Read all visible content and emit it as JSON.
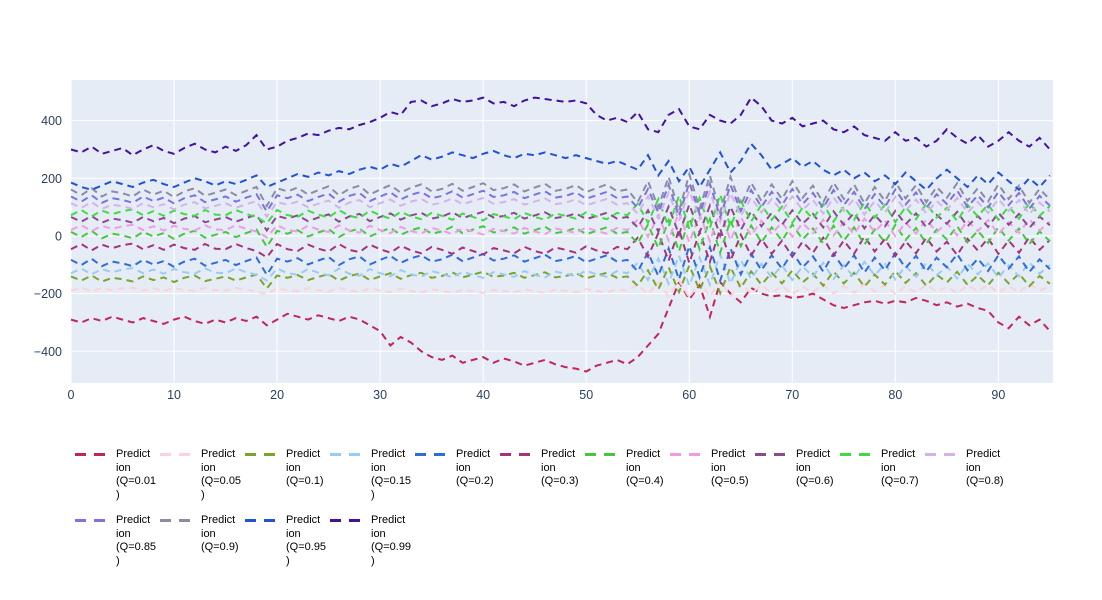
{
  "figure": {
    "title": "",
    "background": "#ffffff"
  },
  "axes": {
    "plot_bg": "#e5ecf6",
    "grid_color": "#ffffff",
    "tick_color": "#2a3f5f",
    "x_ticks": [
      0,
      10,
      20,
      30,
      40,
      50,
      60,
      70,
      80,
      90
    ],
    "y_ticks": [
      -400,
      -200,
      0,
      200,
      400
    ],
    "x_range": [
      0,
      95.3
    ],
    "y_range": [
      -510,
      541
    ]
  },
  "chart_data": {
    "type": "line",
    "title": "",
    "xlabel": "",
    "ylabel": "",
    "line_style": "dashed",
    "grid": true,
    "legend_position": "bottom",
    "x_start": 0,
    "x_step": 1,
    "n_points": 96,
    "xlim": [
      0,
      95.3
    ],
    "ylim": [
      -510,
      541
    ],
    "patterns": {
      "A": [
        12,
        -6,
        16,
        -10,
        6,
        0,
        -10,
        12,
        -4,
        8,
        -12,
        6,
        16,
        -8,
        2,
        12,
        -6,
        8,
        20,
        -40,
        16,
        6,
        18,
        -4,
        10,
        22,
        -6,
        14,
        24,
        -4,
        12,
        26,
        2,
        18,
        28,
        6,
        14,
        30,
        8,
        20,
        32,
        10,
        16,
        28,
        6,
        18,
        30,
        8,
        14,
        26,
        4,
        16,
        28,
        6,
        12,
        -28,
        38,
        -44,
        52,
        -56,
        60,
        -48,
        56,
        -60,
        52,
        -38,
        34,
        -24,
        28,
        -18,
        38,
        -14,
        24,
        -28,
        34,
        -18,
        28,
        -32,
        20,
        -24,
        36,
        -16,
        26,
        -28,
        20,
        -14,
        32,
        -24,
        16,
        -26,
        28,
        -18,
        24,
        -30,
        14,
        -20
      ],
      "B": [
        -8,
        10,
        -12,
        8,
        -4,
        6,
        12,
        -8,
        6,
        -10,
        8,
        -4,
        -10,
        10,
        -6,
        -8,
        10,
        -4,
        -14,
        -36,
        10,
        -8,
        -14,
        8,
        -6,
        -16,
        10,
        -10,
        -18,
        8,
        -8,
        -20,
        4,
        -12,
        -22,
        0,
        -10,
        -24,
        -2,
        -14,
        -26,
        -4,
        -12,
        -22,
        0,
        -14,
        -24,
        -2,
        -10,
        -20,
        2,
        -12,
        -22,
        0,
        -8,
        32,
        -34,
        48,
        -48,
        60,
        -56,
        52,
        -52,
        64,
        -48,
        42,
        -30,
        28,
        -24,
        22,
        -34,
        18,
        -20,
        32,
        -30,
        22,
        -24,
        36,
        -16,
        28,
        -32,
        20,
        -22,
        32,
        -16,
        18,
        -28,
        28,
        -12,
        30,
        -24,
        22,
        -20,
        34,
        -10,
        24
      ]
    },
    "series": [
      {
        "id": "q0-01",
        "name": "Prediction (Q=0.01)",
        "legend_lines": [
          "Predict",
          "ion",
          "(Q=0.01",
          ")"
        ],
        "color": "#c22558",
        "values": [
          -290,
          -300,
          -285,
          -295,
          -280,
          -290,
          -300,
          -285,
          -295,
          -305,
          -290,
          -280,
          -295,
          -305,
          -290,
          -300,
          -285,
          -295,
          -280,
          -310,
          -290,
          -270,
          -280,
          -290,
          -275,
          -285,
          -295,
          -280,
          -290,
          -310,
          -330,
          -380,
          -350,
          -370,
          -400,
          -420,
          -430,
          -415,
          -440,
          -430,
          -420,
          -440,
          -425,
          -435,
          -450,
          -440,
          -430,
          -445,
          -455,
          -460,
          -470,
          -450,
          -440,
          -430,
          -445,
          -420,
          -380,
          -340,
          -250,
          -160,
          -220,
          -170,
          -280,
          -160,
          -200,
          -230,
          -180,
          -200,
          -210,
          -205,
          -215,
          -210,
          -200,
          -220,
          -240,
          -250,
          -240,
          -230,
          -225,
          -235,
          -225,
          -230,
          -215,
          -225,
          -240,
          -230,
          -245,
          -235,
          -250,
          -260,
          -300,
          -320,
          -280,
          -310,
          -290,
          -330
        ]
      },
      {
        "id": "q0-05",
        "name": "Prediction (Q=0.05)",
        "legend_lines": [
          "Predict",
          "ion",
          "(Q=0.05",
          ")"
        ],
        "color": "#fbd2d8",
        "base": -185,
        "amp": 0.5,
        "pattern": "B"
      },
      {
        "id": "q0-1",
        "name": "Prediction (Q=0.1)",
        "legend_lines": [
          "Predict",
          "ion",
          "(Q=0.1)"
        ],
        "color": "#7aa42c",
        "base": -150,
        "amp": 0.8,
        "pattern": "A"
      },
      {
        "id": "q0-15",
        "name": "Prediction (Q=0.15)",
        "legend_lines": [
          "Predict",
          "ion",
          "(Q=0.15",
          ")"
        ],
        "color": "#98ccf3",
        "base": -122,
        "amp": 0.9,
        "pattern": "B"
      },
      {
        "id": "q0-2",
        "name": "Prediction (Q=0.2)",
        "legend_lines": [
          "Predict",
          "ion",
          "(Q=0.2)"
        ],
        "color": "#2d6cdb",
        "base": -95,
        "amp": 1.0,
        "pattern": "A"
      },
      {
        "id": "q0-3",
        "name": "Prediction (Q=0.3)",
        "legend_lines": [
          "Predict",
          "ion",
          "(Q=0.3)"
        ],
        "color": "#a8327a",
        "base": -38,
        "amp": 1.0,
        "pattern": "B"
      },
      {
        "id": "q0-4",
        "name": "Prediction (Q=0.4)",
        "legend_lines": [
          "Predict",
          "ion",
          "(Q=0.4)"
        ],
        "color": "#46c83e",
        "base": 2,
        "amp": 1.0,
        "pattern": "A"
      },
      {
        "id": "q0-5",
        "name": "Prediction (Q=0.5)",
        "legend_lines": [
          "Predict",
          "ion",
          "(Q=0.5)"
        ],
        "color": "#f19be2",
        "base": 28,
        "amp": 0.9,
        "pattern": "B"
      },
      {
        "id": "q0-6",
        "name": "Prediction (Q=0.6)",
        "legend_lines": [
          "Predict",
          "ion",
          "(Q=0.6)"
        ],
        "color": "#8b4a8c",
        "base": 55,
        "amp": 0.9,
        "pattern": "A"
      },
      {
        "id": "q0-7",
        "name": "Prediction (Q=0.7)",
        "legend_lines": [
          "Predict",
          "ion",
          "(Q=0.7)"
        ],
        "color": "#3edc40",
        "base": 80,
        "amp": 1.0,
        "pattern": "B"
      },
      {
        "id": "q0-8",
        "name": "Prediction (Q=0.8)",
        "legend_lines": [
          "Predict",
          "ion",
          "(Q=0.8)"
        ],
        "color": "#d6b3e6",
        "base": 103,
        "amp": 0.9,
        "pattern": "A"
      },
      {
        "id": "q0-85",
        "name": "Prediction (Q=0.85)",
        "legend_lines": [
          "Predict",
          "ion",
          "(Q=0.85",
          ")"
        ],
        "color": "#7e71e0",
        "base": 125,
        "amp": 1.0,
        "pattern": "A"
      },
      {
        "id": "q0-9",
        "name": "Prediction (Q=0.9)",
        "legend_lines": [
          "Predict",
          "ion",
          "(Q=0.9)"
        ],
        "color": "#8b8ba3",
        "base": 148,
        "amp": 1.1,
        "pattern": "A"
      },
      {
        "id": "q0-95",
        "name": "Prediction (Q=0.95)",
        "legend_lines": [
          "Predict",
          "ion",
          "(Q=0.95",
          ")"
        ],
        "color": "#2052d4",
        "values": [
          185,
          170,
          160,
          175,
          190,
          180,
          170,
          185,
          195,
          180,
          170,
          185,
          200,
          190,
          175,
          190,
          180,
          195,
          210,
          170,
          185,
          200,
          215,
          205,
          220,
          210,
          225,
          215,
          230,
          240,
          230,
          250,
          240,
          260,
          280,
          265,
          275,
          290,
          280,
          270,
          285,
          295,
          280,
          270,
          285,
          280,
          290,
          280,
          270,
          280,
          270,
          260,
          250,
          260,
          245,
          230,
          280,
          210,
          260,
          190,
          240,
          170,
          230,
          290,
          220,
          260,
          320,
          280,
          230,
          250,
          270,
          240,
          260,
          230,
          210,
          230,
          200,
          220,
          190,
          210,
          180,
          220,
          190,
          160,
          200,
          230,
          200,
          170,
          210,
          180,
          220,
          190,
          160,
          200,
          170,
          210
        ]
      },
      {
        "id": "q0-99",
        "name": "Prediction (Q=0.99)",
        "legend_lines": [
          "Predict",
          "ion",
          "(Q=0.99",
          ")"
        ],
        "color": "#44119c",
        "values": [
          300,
          290,
          310,
          285,
          295,
          305,
          280,
          300,
          315,
          295,
          285,
          305,
          320,
          300,
          290,
          310,
          295,
          315,
          350,
          300,
          310,
          330,
          340,
          355,
          350,
          365,
          375,
          370,
          385,
          395,
          410,
          430,
          420,
          465,
          470,
          450,
          460,
          475,
          465,
          470,
          480,
          460,
          465,
          450,
          470,
          480,
          475,
          470,
          465,
          470,
          460,
          420,
          400,
          410,
          395,
          430,
          370,
          360,
          420,
          440,
          380,
          370,
          420,
          400,
          390,
          420,
          480,
          450,
          400,
          390,
          410,
          380,
          390,
          400,
          370,
          360,
          380,
          350,
          340,
          330,
          360,
          330,
          340,
          310,
          330,
          370,
          340,
          320,
          350,
          310,
          330,
          360,
          330,
          310,
          340,
          300
        ]
      }
    ]
  },
  "legend": {
    "row_break": 11,
    "dash": "7 5",
    "text_color": "#000000"
  }
}
